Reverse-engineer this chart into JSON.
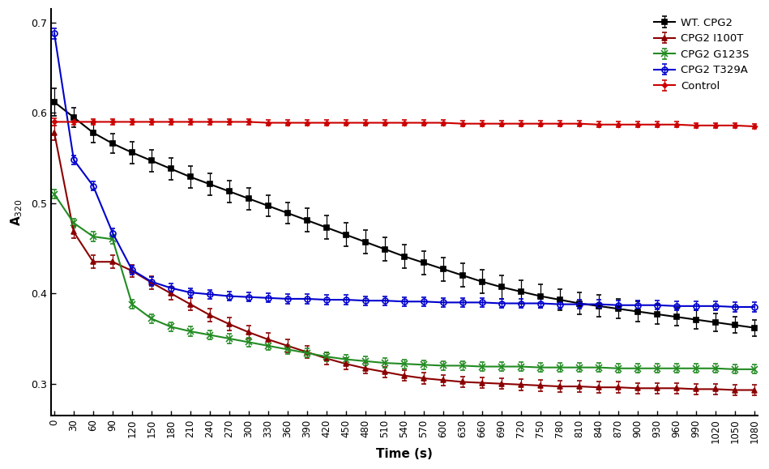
{
  "title": "",
  "xlabel": "Time (s)",
  "ylabel": "A$_{320}$",
  "xlim": [
    -5,
    1085
  ],
  "ylim": [
    0.265,
    0.715
  ],
  "yticks": [
    0.3,
    0.4,
    0.5,
    0.6,
    0.7
  ],
  "xticks": [
    0,
    30,
    60,
    90,
    120,
    150,
    180,
    210,
    240,
    270,
    300,
    330,
    360,
    390,
    420,
    450,
    480,
    510,
    540,
    570,
    600,
    630,
    660,
    690,
    720,
    750,
    780,
    810,
    840,
    870,
    900,
    930,
    960,
    990,
    1020,
    1050,
    1080
  ],
  "series": {
    "WT_CPG2": {
      "label": "WT. CPG2",
      "color": "#000000",
      "marker": "s",
      "markersize": 4,
      "linewidth": 1.5,
      "x": [
        0,
        30,
        60,
        90,
        120,
        150,
        180,
        210,
        240,
        270,
        300,
        330,
        360,
        390,
        420,
        450,
        480,
        510,
        540,
        570,
        600,
        630,
        660,
        690,
        720,
        750,
        780,
        810,
        840,
        870,
        900,
        930,
        960,
        990,
        1020,
        1050,
        1080
      ],
      "y": [
        0.612,
        0.595,
        0.578,
        0.566,
        0.556,
        0.547,
        0.538,
        0.529,
        0.521,
        0.513,
        0.505,
        0.497,
        0.489,
        0.481,
        0.473,
        0.465,
        0.457,
        0.449,
        0.441,
        0.434,
        0.427,
        0.42,
        0.413,
        0.407,
        0.402,
        0.397,
        0.393,
        0.389,
        0.386,
        0.383,
        0.38,
        0.377,
        0.374,
        0.371,
        0.368,
        0.365,
        0.362
      ],
      "yerr": [
        0.015,
        0.011,
        0.011,
        0.011,
        0.012,
        0.012,
        0.012,
        0.012,
        0.012,
        0.012,
        0.012,
        0.012,
        0.012,
        0.013,
        0.013,
        0.013,
        0.013,
        0.013,
        0.013,
        0.013,
        0.013,
        0.013,
        0.013,
        0.013,
        0.013,
        0.013,
        0.012,
        0.012,
        0.012,
        0.011,
        0.011,
        0.011,
        0.01,
        0.01,
        0.01,
        0.009,
        0.009
      ]
    },
    "CPG2_I100T": {
      "label": "CPG2 I100T",
      "color": "#8B0000",
      "marker": "^",
      "markersize": 5,
      "linewidth": 1.5,
      "x": [
        0,
        30,
        60,
        90,
        120,
        150,
        180,
        210,
        240,
        270,
        300,
        330,
        360,
        390,
        420,
        450,
        480,
        510,
        540,
        570,
        600,
        630,
        660,
        690,
        720,
        750,
        780,
        810,
        840,
        870,
        900,
        930,
        960,
        990,
        1020,
        1050,
        1080
      ],
      "y": [
        0.578,
        0.468,
        0.435,
        0.435,
        0.425,
        0.412,
        0.4,
        0.388,
        0.376,
        0.366,
        0.357,
        0.349,
        0.342,
        0.335,
        0.328,
        0.322,
        0.317,
        0.313,
        0.309,
        0.306,
        0.304,
        0.302,
        0.301,
        0.3,
        0.299,
        0.298,
        0.297,
        0.297,
        0.296,
        0.296,
        0.295,
        0.295,
        0.295,
        0.294,
        0.294,
        0.293,
        0.293
      ],
      "yerr": [
        0.008,
        0.007,
        0.007,
        0.007,
        0.007,
        0.007,
        0.007,
        0.007,
        0.007,
        0.007,
        0.007,
        0.007,
        0.007,
        0.007,
        0.007,
        0.006,
        0.006,
        0.006,
        0.006,
        0.006,
        0.006,
        0.006,
        0.006,
        0.006,
        0.006,
        0.006,
        0.006,
        0.006,
        0.006,
        0.006,
        0.006,
        0.006,
        0.006,
        0.006,
        0.006,
        0.006,
        0.006
      ]
    },
    "CPG2_G123S": {
      "label": "CPG2 G123S",
      "color": "#228B22",
      "marker": "x",
      "markersize": 6,
      "linewidth": 1.5,
      "x": [
        0,
        30,
        60,
        90,
        120,
        150,
        180,
        210,
        240,
        270,
        300,
        330,
        360,
        390,
        420,
        450,
        480,
        510,
        540,
        570,
        600,
        630,
        660,
        690,
        720,
        750,
        780,
        810,
        840,
        870,
        900,
        930,
        960,
        990,
        1020,
        1050,
        1080
      ],
      "y": [
        0.51,
        0.478,
        0.463,
        0.46,
        0.388,
        0.372,
        0.363,
        0.358,
        0.354,
        0.35,
        0.346,
        0.342,
        0.338,
        0.334,
        0.33,
        0.327,
        0.325,
        0.323,
        0.322,
        0.321,
        0.32,
        0.32,
        0.319,
        0.319,
        0.319,
        0.318,
        0.318,
        0.318,
        0.318,
        0.317,
        0.317,
        0.317,
        0.317,
        0.317,
        0.317,
        0.316,
        0.316
      ],
      "yerr": [
        0.005,
        0.005,
        0.005,
        0.005,
        0.005,
        0.005,
        0.005,
        0.005,
        0.005,
        0.005,
        0.005,
        0.005,
        0.005,
        0.005,
        0.005,
        0.005,
        0.005,
        0.005,
        0.005,
        0.005,
        0.005,
        0.005,
        0.005,
        0.005,
        0.005,
        0.005,
        0.005,
        0.005,
        0.005,
        0.005,
        0.005,
        0.005,
        0.005,
        0.005,
        0.005,
        0.005,
        0.005
      ]
    },
    "CPG2_T329A": {
      "label": "CPG2 T329A",
      "color": "#0000CD",
      "marker": "o",
      "markersize": 5,
      "linewidth": 1.5,
      "markerfacecolor": "none",
      "x": [
        0,
        30,
        60,
        90,
        120,
        150,
        180,
        210,
        240,
        270,
        300,
        330,
        360,
        390,
        420,
        450,
        480,
        510,
        540,
        570,
        600,
        630,
        660,
        690,
        720,
        750,
        780,
        810,
        840,
        870,
        900,
        930,
        960,
        990,
        1020,
        1050,
        1080
      ],
      "y": [
        0.688,
        0.548,
        0.519,
        0.467,
        0.426,
        0.413,
        0.406,
        0.401,
        0.399,
        0.397,
        0.396,
        0.395,
        0.394,
        0.394,
        0.393,
        0.393,
        0.392,
        0.392,
        0.391,
        0.391,
        0.39,
        0.39,
        0.39,
        0.389,
        0.389,
        0.389,
        0.388,
        0.388,
        0.388,
        0.387,
        0.387,
        0.387,
        0.386,
        0.386,
        0.386,
        0.385,
        0.385
      ],
      "yerr": [
        0.006,
        0.005,
        0.005,
        0.005,
        0.005,
        0.005,
        0.005,
        0.005,
        0.005,
        0.005,
        0.005,
        0.005,
        0.005,
        0.005,
        0.005,
        0.005,
        0.005,
        0.005,
        0.005,
        0.005,
        0.005,
        0.005,
        0.005,
        0.005,
        0.005,
        0.005,
        0.005,
        0.005,
        0.005,
        0.005,
        0.005,
        0.005,
        0.005,
        0.005,
        0.005,
        0.005,
        0.005
      ]
    },
    "Control": {
      "label": "Control",
      "color": "#CC0000",
      "marker": "D",
      "markersize": 3,
      "linewidth": 1.5,
      "x": [
        0,
        30,
        60,
        90,
        120,
        150,
        180,
        210,
        240,
        270,
        300,
        330,
        360,
        390,
        420,
        450,
        480,
        510,
        540,
        570,
        600,
        630,
        660,
        690,
        720,
        750,
        780,
        810,
        840,
        870,
        900,
        930,
        960,
        990,
        1020,
        1050,
        1080
      ],
      "y": [
        0.59,
        0.59,
        0.59,
        0.59,
        0.59,
        0.59,
        0.59,
        0.59,
        0.59,
        0.59,
        0.59,
        0.589,
        0.589,
        0.589,
        0.589,
        0.589,
        0.589,
        0.589,
        0.589,
        0.589,
        0.589,
        0.588,
        0.588,
        0.588,
        0.588,
        0.588,
        0.588,
        0.588,
        0.587,
        0.587,
        0.587,
        0.587,
        0.587,
        0.586,
        0.586,
        0.586,
        0.585
      ],
      "yerr": [
        0.004,
        0.003,
        0.003,
        0.003,
        0.003,
        0.003,
        0.003,
        0.003,
        0.003,
        0.003,
        0.003,
        0.003,
        0.003,
        0.003,
        0.003,
        0.003,
        0.003,
        0.003,
        0.003,
        0.003,
        0.003,
        0.003,
        0.003,
        0.003,
        0.003,
        0.003,
        0.003,
        0.003,
        0.003,
        0.003,
        0.003,
        0.003,
        0.003,
        0.003,
        0.003,
        0.003,
        0.003
      ]
    }
  },
  "background_color": "#ffffff",
  "figure_size": [
    9.49,
    5.79
  ],
  "dpi": 100
}
